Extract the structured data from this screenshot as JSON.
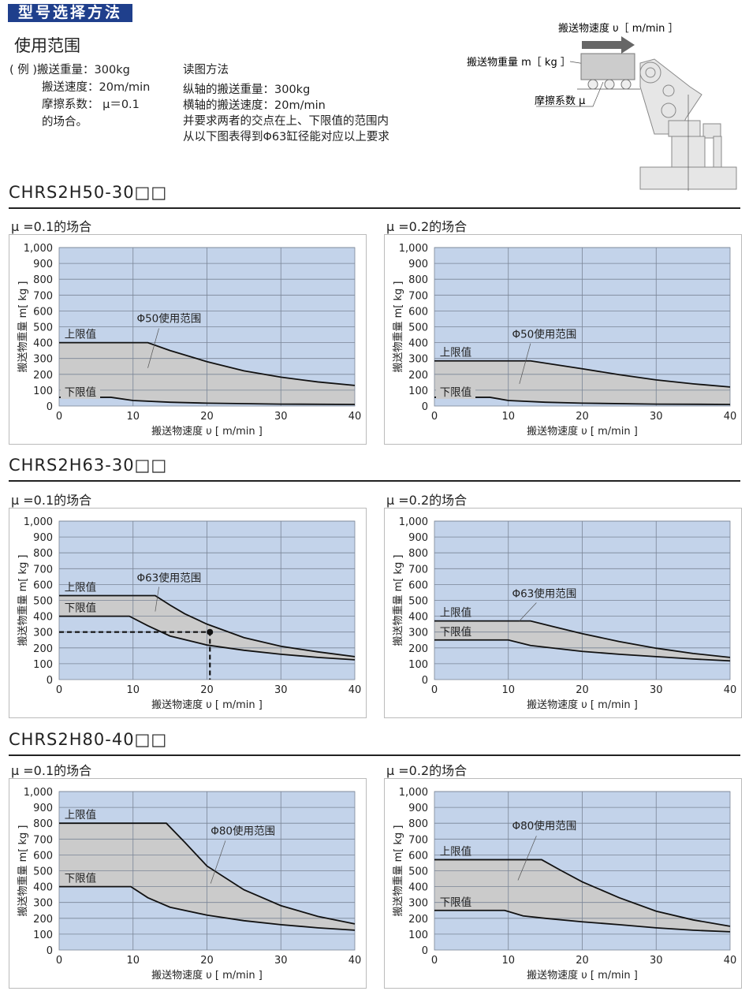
{
  "header": {
    "banner": "型号选择方法",
    "subtitle": "使用范围"
  },
  "example": {
    "lines": [
      "( 例 )搬送重量：300kg",
      "搬送速度：20m/min",
      "摩擦系数： μ＝0.1",
      "的场合。"
    ],
    "read_title": "读图方法",
    "read_lines": [
      "纵轴的搬送重量：300kg",
      "横轴的搬送速度：20m/min",
      "并要求两者的交点在上、下限值的范围内",
      "从以下图表得到Φ63缸径能对应以上要求"
    ]
  },
  "diagram": {
    "speed_label": "搬送物速度 υ［ m/min ］",
    "weight_label": "搬送物重量 m［ kg ］",
    "friction_label": "摩擦系数 μ"
  },
  "sections": [
    {
      "title": "CHRS2H50-30□□"
    },
    {
      "title": "CHRS2H63-30□□"
    },
    {
      "title": "CHRS2H80-40□□"
    }
  ],
  "chart_data": [
    {
      "type": "area",
      "case": "μ =0.1的场合",
      "range_label": "Φ50使用范围",
      "upper_label": "上限值",
      "lower_label": "下限值",
      "xlabel": "搬送物速度 υ [ m/min ]",
      "ylabel": "搬送物重量 m[ kg ]",
      "xlim": [
        0,
        40
      ],
      "ylim": [
        0,
        1000
      ],
      "xticks": [
        "0",
        "10",
        "20",
        "30",
        "40"
      ],
      "yticks": [
        "0",
        "100",
        "200",
        "300",
        "400",
        "500",
        "600",
        "700",
        "800",
        "900",
        "1,000"
      ],
      "upper": [
        [
          0,
          400
        ],
        [
          12,
          400
        ],
        [
          15,
          350
        ],
        [
          20,
          280
        ],
        [
          25,
          222
        ],
        [
          30,
          182
        ],
        [
          35,
          152
        ],
        [
          40,
          130
        ]
      ],
      "lower": [
        [
          0,
          55
        ],
        [
          7,
          55
        ],
        [
          10,
          35
        ],
        [
          15,
          24
        ],
        [
          20,
          18
        ],
        [
          30,
          12
        ],
        [
          40,
          10
        ]
      ]
    },
    {
      "type": "area",
      "case": "μ =0.2的场合",
      "range_label": "Φ50使用范围",
      "upper_label": "上限值",
      "lower_label": "下限值",
      "xlabel": "搬送物速度 υ [ m/min ]",
      "ylabel": "搬送物重量 m[ kg ]",
      "xlim": [
        0,
        40
      ],
      "ylim": [
        0,
        1000
      ],
      "xticks": [
        "0",
        "10",
        "20",
        "30",
        "40"
      ],
      "yticks": [
        "0",
        "100",
        "200",
        "300",
        "400",
        "500",
        "600",
        "700",
        "800",
        "900",
        "1,000"
      ],
      "upper": [
        [
          0,
          285
        ],
        [
          13,
          285
        ],
        [
          20,
          235
        ],
        [
          25,
          198
        ],
        [
          30,
          165
        ],
        [
          35,
          140
        ],
        [
          40,
          120
        ]
      ],
      "lower": [
        [
          0,
          55
        ],
        [
          7.5,
          55
        ],
        [
          10,
          35
        ],
        [
          15,
          24
        ],
        [
          20,
          18
        ],
        [
          30,
          12
        ],
        [
          40,
          10
        ]
      ]
    },
    {
      "type": "area",
      "case": "μ =0.1的场合",
      "range_label": "Φ63使用范围",
      "upper_label": "上限值",
      "lower_label": "下限值",
      "xlabel": "搬送物速度 υ [ m/min ]",
      "ylabel": "搬送物重量 m[ kg ]",
      "xlim": [
        0,
        40
      ],
      "ylim": [
        0,
        1000
      ],
      "xticks": [
        "0",
        "10",
        "20",
        "30",
        "40"
      ],
      "yticks": [
        "0",
        "100",
        "200",
        "300",
        "400",
        "500",
        "600",
        "700",
        "800",
        "900",
        "1,000"
      ],
      "upper": [
        [
          0,
          530
        ],
        [
          13,
          530
        ],
        [
          15,
          470
        ],
        [
          17,
          415
        ],
        [
          20,
          350
        ],
        [
          25,
          265
        ],
        [
          30,
          210
        ],
        [
          35,
          175
        ],
        [
          40,
          145
        ]
      ],
      "lower": [
        [
          0,
          400
        ],
        [
          9.5,
          400
        ],
        [
          12,
          340
        ],
        [
          15,
          275
        ],
        [
          20,
          218
        ],
        [
          25,
          185
        ],
        [
          30,
          160
        ],
        [
          35,
          140
        ],
        [
          40,
          125
        ]
      ],
      "example_point": [
        20.4,
        300
      ]
    },
    {
      "type": "area",
      "case": "μ =0.2的场合",
      "range_label": "Φ63使用范围",
      "upper_label": "上限值",
      "lower_label": "下限值",
      "xlabel": "搬送物速度 υ [ m/min ]",
      "ylabel": "搬送物重量 m[ kg ]",
      "xlim": [
        0,
        40
      ],
      "ylim": [
        0,
        1000
      ],
      "xticks": [
        "0",
        "10",
        "20",
        "30",
        "40"
      ],
      "yticks": [
        "0",
        "100",
        "200",
        "300",
        "400",
        "500",
        "600",
        "700",
        "800",
        "900",
        "1,000"
      ],
      "upper": [
        [
          0,
          370
        ],
        [
          13,
          370
        ],
        [
          16,
          335
        ],
        [
          20,
          290
        ],
        [
          25,
          240
        ],
        [
          30,
          198
        ],
        [
          35,
          165
        ],
        [
          40,
          140
        ]
      ],
      "lower": [
        [
          0,
          250
        ],
        [
          10,
          250
        ],
        [
          13,
          215
        ],
        [
          20,
          178
        ],
        [
          25,
          160
        ],
        [
          30,
          145
        ],
        [
          35,
          130
        ],
        [
          40,
          118
        ]
      ]
    },
    {
      "type": "area",
      "case": "μ =0.1的场合",
      "range_label": "Φ80使用范围",
      "upper_label": "上限值",
      "lower_label": "下限值",
      "xlabel": "搬送物速度 υ [ m/min ]",
      "ylabel": "搬送物重量 m[ kg ]",
      "xlim": [
        0,
        40
      ],
      "ylim": [
        0,
        1000
      ],
      "xticks": [
        "0",
        "10",
        "20",
        "30",
        "40"
      ],
      "yticks": [
        "0",
        "100",
        "200",
        "300",
        "400",
        "500",
        "600",
        "700",
        "800",
        "900",
        "1,000"
      ],
      "upper": [
        [
          0,
          800
        ],
        [
          14.5,
          800
        ],
        [
          17,
          680
        ],
        [
          20,
          530
        ],
        [
          25,
          380
        ],
        [
          30,
          280
        ],
        [
          35,
          212
        ],
        [
          40,
          165
        ]
      ],
      "lower": [
        [
          0,
          400
        ],
        [
          9.7,
          400
        ],
        [
          12,
          330
        ],
        [
          15,
          270
        ],
        [
          20,
          220
        ],
        [
          25,
          185
        ],
        [
          30,
          160
        ],
        [
          35,
          140
        ],
        [
          40,
          125
        ]
      ]
    },
    {
      "type": "area",
      "case": "μ =0.2的场合",
      "range_label": "Φ80使用范围",
      "upper_label": "上限值",
      "lower_label": "下限值",
      "xlabel": "搬送物速度 υ [ m/min ]",
      "ylabel": "搬送物重量 m[ kg ]",
      "xlim": [
        0,
        40
      ],
      "ylim": [
        0,
        1000
      ],
      "xticks": [
        "0",
        "10",
        "20",
        "30",
        "40"
      ],
      "yticks": [
        "0",
        "100",
        "200",
        "300",
        "400",
        "500",
        "600",
        "700",
        "800",
        "900",
        "1,000"
      ],
      "upper": [
        [
          0,
          570
        ],
        [
          14.5,
          570
        ],
        [
          17,
          505
        ],
        [
          20,
          430
        ],
        [
          25,
          330
        ],
        [
          30,
          245
        ],
        [
          35,
          190
        ],
        [
          40,
          150
        ]
      ],
      "lower": [
        [
          0,
          250
        ],
        [
          9.5,
          250
        ],
        [
          12,
          215
        ],
        [
          15,
          200
        ],
        [
          20,
          178
        ],
        [
          25,
          160
        ],
        [
          30,
          140
        ],
        [
          35,
          125
        ],
        [
          40,
          115
        ]
      ]
    }
  ],
  "colors": {
    "banner": "#1f3f8c",
    "plot_bg": "#c3d3ea",
    "range_fill": "#cbcbcb"
  }
}
